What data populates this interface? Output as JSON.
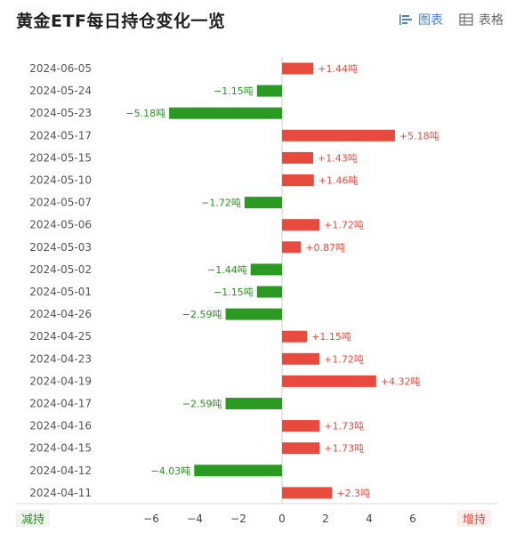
{
  "page": {
    "title": "黄金ETF每日持仓变化一览",
    "tabs": [
      {
        "label": "图表",
        "icon": "bar-chart-icon",
        "active": true
      },
      {
        "label": "表格",
        "icon": "table-icon",
        "active": false
      }
    ],
    "left_label": "减持",
    "right_label": "增持"
  },
  "colors": {
    "increase": "#e84a3d",
    "decrease": "#2a9a22",
    "accent": "#4a7fd1"
  },
  "chart_data": {
    "type": "bar",
    "orientation": "horizontal",
    "title": "黄金ETF每日持仓变化一览",
    "unit": "吨",
    "categories": [
      "2024-06-05",
      "2024-05-24",
      "2024-05-23",
      "2024-05-17",
      "2024-05-15",
      "2024-05-10",
      "2024-05-07",
      "2024-05-06",
      "2024-05-03",
      "2024-05-02",
      "2024-05-01",
      "2024-04-26",
      "2024-04-25",
      "2024-04-23",
      "2024-04-19",
      "2024-04-17",
      "2024-04-16",
      "2024-04-15",
      "2024-04-12",
      "2024-04-11"
    ],
    "values": [
      1.44,
      -1.15,
      -5.18,
      5.18,
      1.43,
      1.46,
      -1.72,
      1.72,
      0.87,
      -1.44,
      -1.15,
      -2.59,
      1.15,
      1.72,
      4.32,
      -2.59,
      1.73,
      1.73,
      -4.03,
      2.3
    ],
    "value_labels": [
      "+1.44吨",
      "−1.15吨",
      "−5.18吨",
      "+5.18吨",
      "+1.43吨",
      "+1.46吨",
      "−1.72吨",
      "+1.72吨",
      "+0.87吨",
      "−1.44吨",
      "−1.15吨",
      "−2.59吨",
      "+1.15吨",
      "+1.72吨",
      "+4.32吨",
      "−2.59吨",
      "+1.73吨",
      "+1.73吨",
      "−4.03吨",
      "+2.3吨"
    ],
    "xlim": [
      -6.5,
      6.5
    ],
    "xticks": [
      -6,
      -4,
      -2,
      0,
      2,
      4,
      6
    ],
    "xtick_labels": [
      "−6",
      "−4",
      "−2",
      "0",
      "2",
      "4",
      "6"
    ],
    "grid": false
  }
}
